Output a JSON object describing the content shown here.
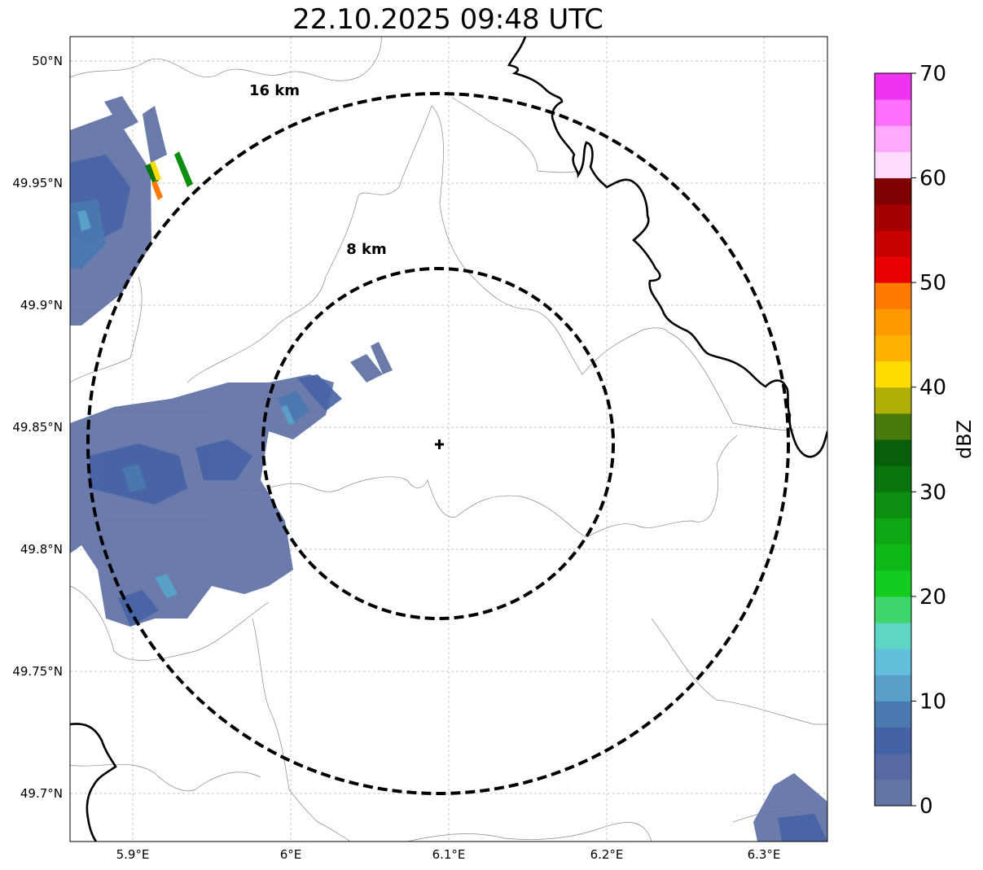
{
  "title": "22.10.2025 09:48 UTC",
  "map": {
    "lat_ticks": [
      "50°N",
      "49.95°N",
      "49.9°N",
      "49.85°N",
      "49.8°N",
      "49.75°N",
      "49.7°N"
    ],
    "lon_ticks": [
      "5.9°E",
      "6°E",
      "6.1°E",
      "6.2°E",
      "6.3°E"
    ],
    "rings": [
      {
        "label": "16 km",
        "radius_km": 16
      },
      {
        "label": "8 km",
        "radius_km": 8
      }
    ],
    "radar_site_marker": "plus-icon"
  },
  "colorbar": {
    "label": "dBZ",
    "ticks": [
      "0",
      "10",
      "20",
      "30",
      "40",
      "50",
      "60",
      "70"
    ],
    "colors": [
      "#6374a6",
      "#5669a3",
      "#4662a6",
      "#4a79b0",
      "#59a0c8",
      "#63c0dd",
      "#5dd6c5",
      "#3ed66c",
      "#12cc20",
      "#0fb718",
      "#0ea612",
      "#0c8e10",
      "#0a740d",
      "#075f0a",
      "#497a0c",
      "#aeb005",
      "#ffdb00",
      "#ffb300",
      "#ff9a00",
      "#ff7a00",
      "#e80000",
      "#c70000",
      "#a30000",
      "#7e0000",
      "#ffdcff",
      "#ffaaff",
      "#ff70ff",
      "#f033f0"
    ]
  }
}
